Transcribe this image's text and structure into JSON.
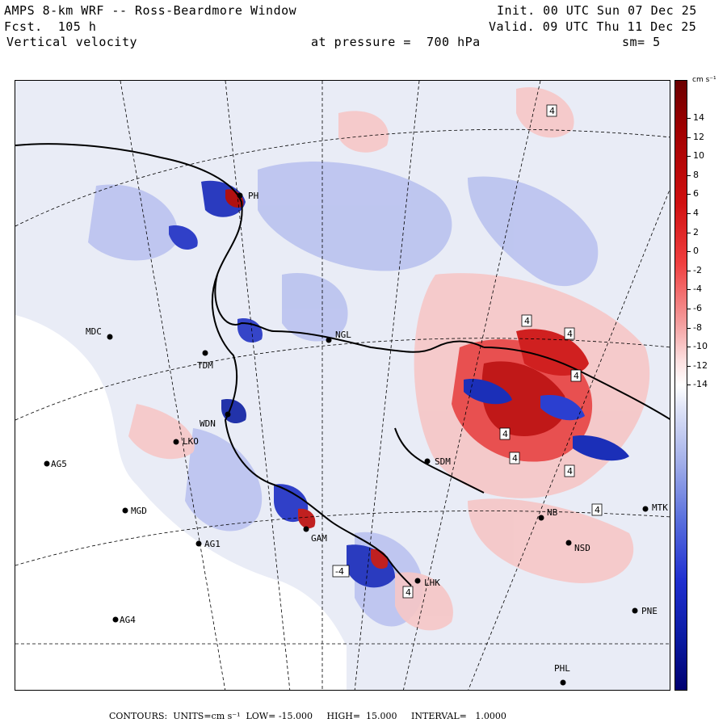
{
  "header": {
    "title": "AMPS 8-km WRF -- Ross-Beardmore Window",
    "forecast": "Fcst.  105 h",
    "field": "Vertical velocity",
    "level": "at pressure =  700 hPa",
    "init": "Init. 00 UTC Sun 07 Dec 25",
    "valid": "Valid. 09 UTC Thu 11 Dec 25",
    "smoothing": "sm= 5"
  },
  "colorbar": {
    "units_label": "cm s⁻¹",
    "ticks": [
      "14",
      "12",
      "10",
      "8",
      "6",
      "4",
      "2",
      "0",
      "-2",
      "-4",
      "-6",
      "-8",
      "-10",
      "-12",
      "-14"
    ],
    "colors": {
      "max": "#6b0000",
      "high": "#d01010",
      "mid_pos": "#f4a0a0",
      "zero": "#ffffff",
      "mid_neg": "#a7b3ea",
      "low": "#2030d0",
      "min": "#000070"
    }
  },
  "stations": [
    {
      "code": "PH"
    },
    {
      "code": "MDC"
    },
    {
      "code": "TDM"
    },
    {
      "code": "NGL"
    },
    {
      "code": "LKO"
    },
    {
      "code": "AG5"
    },
    {
      "code": "MGD"
    },
    {
      "code": "AG1"
    },
    {
      "code": "AG4"
    },
    {
      "code": "SDM"
    },
    {
      "code": "NSD"
    },
    {
      "code": "MTK"
    },
    {
      "code": "PNE"
    },
    {
      "code": "PHL"
    },
    {
      "code": "LHK"
    },
    {
      "code": "GAM"
    },
    {
      "code": "NB"
    },
    {
      "code": "WDN"
    }
  ],
  "contour_labels": [
    "4",
    "4",
    "4",
    "4",
    "4",
    "4",
    "4",
    "4",
    "-4",
    "4"
  ],
  "footer": {
    "contours": "CONTOURS:  UNITS=cm s⁻¹  LOW= -15.000     HIGH=  15.000     INTERVAL=   1.0000"
  }
}
